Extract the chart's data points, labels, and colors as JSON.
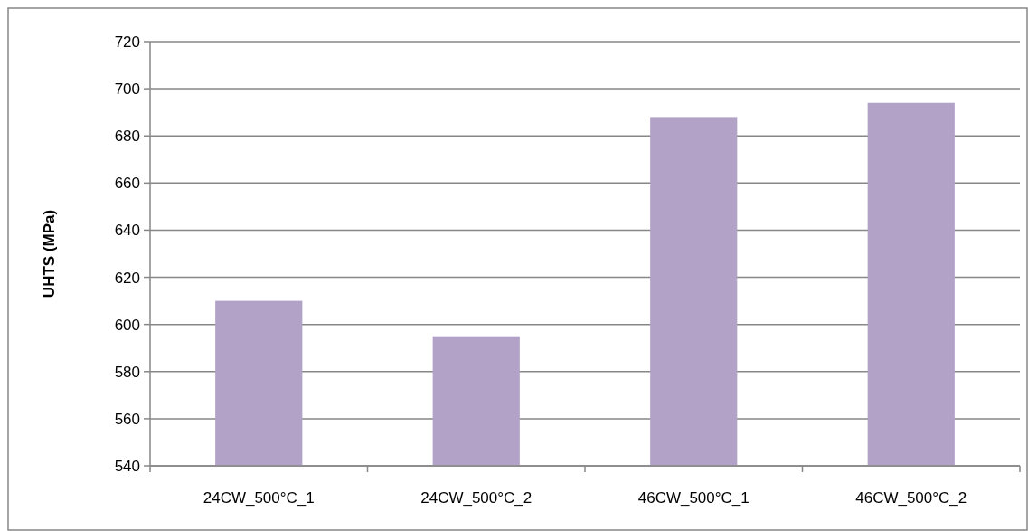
{
  "chart_data": {
    "type": "bar",
    "ylabel": "UHTS  (MPa)",
    "categories": [
      "24CW_500°C_1",
      "24CW_500°C_2",
      "46CW_500°C_1",
      "46CW_500°C_2"
    ],
    "values": [
      610,
      595,
      688,
      694
    ],
    "color": "#b2a2c7",
    "ylim": [
      540,
      720
    ],
    "yticks": [
      540,
      560,
      580,
      600,
      620,
      640,
      660,
      680,
      700,
      720
    ],
    "grid": "y"
  }
}
